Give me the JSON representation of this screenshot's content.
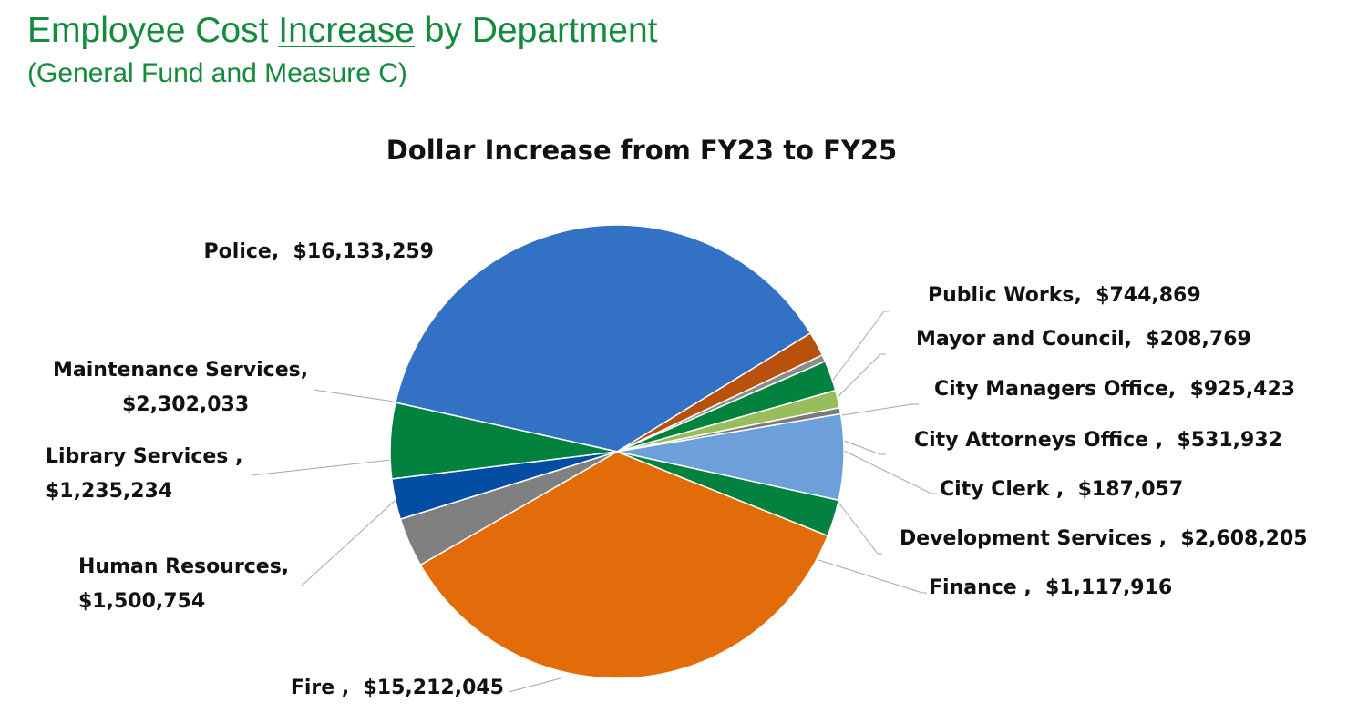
{
  "header": {
    "title_pre": "Employee Cost ",
    "title_underlined": "Increase",
    "title_post": " by Department",
    "subtitle": "(General Fund and Measure C)"
  },
  "chart_data": {
    "type": "pie",
    "title": "Dollar Increase from FY23 to FY25",
    "slices": [
      {
        "label": "Police",
        "sep": ",  ",
        "value": 16133259,
        "value_text": "$16,133,259",
        "color": "#3371c4"
      },
      {
        "label": "Public Works",
        "sep": ",  ",
        "value": 744869,
        "value_text": "$744,869",
        "color": "#b8510b"
      },
      {
        "label": "Mayor and Council",
        "sep": ",  ",
        "value": 208769,
        "value_text": "$208,769",
        "color": "#8c8c8c"
      },
      {
        "label": "City Managers Office",
        "sep": ",  ",
        "value": 925423,
        "value_text": "$925,423",
        "color": "#03823f"
      },
      {
        "label": "City Attorneys Office ",
        "sep": ",  ",
        "value": 531932,
        "value_text": "$531,932",
        "color": "#98bd5c"
      },
      {
        "label": "City Clerk ",
        "sep": ",  ",
        "value": 187057,
        "value_text": "$187,057",
        "color": "#7a7a7a"
      },
      {
        "label": "Development Services ",
        "sep": ",  ",
        "value": 2608205,
        "value_text": "$2,608,205",
        "color": "#6d9fdb"
      },
      {
        "label": "Finance ",
        "sep": ",  ",
        "value": 1117916,
        "value_text": "$1,117,916",
        "color": "#03823f"
      },
      {
        "label": "Fire ",
        "sep": ",  ",
        "value": 15212045,
        "value_text": "$15,212,045",
        "color": "#e36c0a"
      },
      {
        "label": "Human Resources",
        "sep": ",",
        "value": 1500754,
        "value_text": "$1,500,754",
        "color": "#808080"
      },
      {
        "label": "Library Services ",
        "sep": ",",
        "value": 1235234,
        "value_text": "$1,235,234",
        "color": "#034ea2"
      },
      {
        "label": "Maintenance Services",
        "sep": ",",
        "value": 2302033,
        "value_text": "$2,302,033",
        "color": "#03823f"
      }
    ]
  }
}
